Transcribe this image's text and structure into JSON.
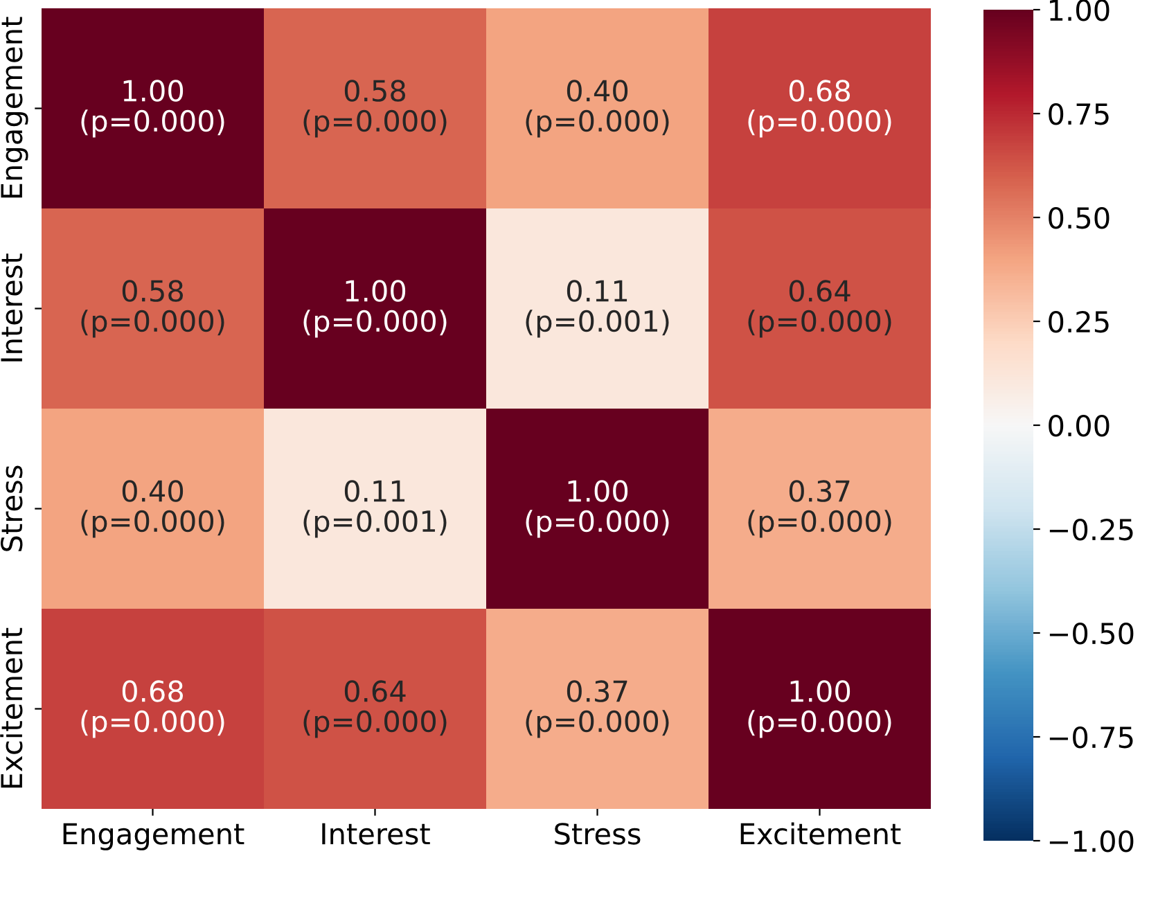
{
  "chart_data": {
    "type": "heatmap",
    "categories": [
      "Engagement",
      "Interest",
      "Stress",
      "Excitement"
    ],
    "y_categories": [
      "Engagement",
      "Interest",
      "Stress",
      "Excitement"
    ],
    "cells": [
      [
        1.0,
        0.58,
        0.4,
        0.68
      ],
      [
        0.58,
        1.0,
        0.11,
        0.64
      ],
      [
        0.4,
        0.11,
        1.0,
        0.37
      ],
      [
        0.68,
        0.64,
        0.37,
        1.0
      ]
    ],
    "cell_labels": [
      [
        "1.00\n(p=0.000)",
        "0.58\n(p=0.000)",
        "0.40\n(p=0.000)",
        "0.68\n(p=0.000)"
      ],
      [
        "0.58\n(p=0.000)",
        "1.00\n(p=0.000)",
        "0.11\n(p=0.001)",
        "0.64\n(p=0.000)"
      ],
      [
        "0.40\n(p=0.000)",
        "0.11\n(p=0.001)",
        "1.00\n(p=0.000)",
        "0.37\n(p=0.000)"
      ],
      [
        "0.68\n(p=0.000)",
        "0.64\n(p=0.000)",
        "0.37\n(p=0.000)",
        "1.00\n(p=0.000)"
      ]
    ],
    "clim": [
      -1,
      1
    ],
    "cticks": [
      {
        "value": -1,
        "label": "−1.00"
      },
      {
        "value": -0.75,
        "label": "−0.75"
      },
      {
        "value": -0.5,
        "label": "−0.50"
      },
      {
        "value": -0.25,
        "label": "−0.25"
      },
      {
        "value": 0,
        "label": "0.00"
      },
      {
        "value": 0.25,
        "label": "0.25"
      },
      {
        "value": 0.5,
        "label": "0.50"
      },
      {
        "value": 0.75,
        "label": "0.75"
      },
      {
        "value": 1,
        "label": "1.00"
      }
    ]
  }
}
